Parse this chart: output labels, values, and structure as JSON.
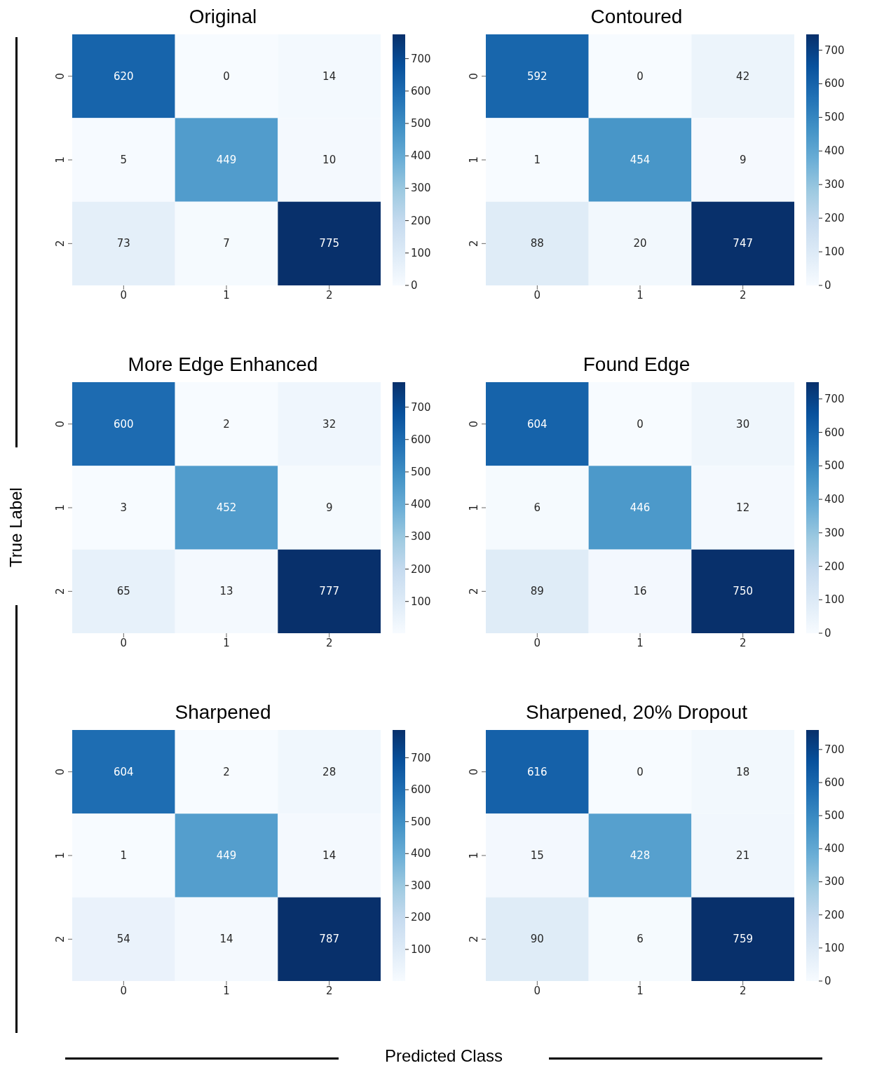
{
  "chart_data": [
    {
      "type": "heatmap",
      "title": "Original",
      "categories": [
        "0",
        "1",
        "2"
      ],
      "y_categories": [
        "0",
        "1",
        "2"
      ],
      "cells": [
        [
          620,
          0,
          14
        ],
        [
          5,
          449,
          10
        ],
        [
          73,
          7,
          775
        ]
      ],
      "clim": [
        0,
        775
      ],
      "cticks": [
        0,
        100,
        200,
        300,
        400,
        500,
        600,
        700
      ],
      "data_labels": true
    },
    {
      "type": "heatmap",
      "title": "Contoured",
      "categories": [
        "0",
        "1",
        "2"
      ],
      "y_categories": [
        "0",
        "1",
        "2"
      ],
      "cells": [
        [
          592,
          0,
          42
        ],
        [
          1,
          454,
          9
        ],
        [
          88,
          20,
          747
        ]
      ],
      "clim": [
        0,
        747
      ],
      "cticks": [
        0,
        100,
        200,
        300,
        400,
        500,
        600,
        700
      ],
      "data_labels": true
    },
    {
      "type": "heatmap",
      "title": "More Edge Enhanced",
      "ylabel": "True Label",
      "categories": [
        "0",
        "1",
        "2"
      ],
      "y_categories": [
        "0",
        "1",
        "2"
      ],
      "cells": [
        [
          600,
          2,
          32
        ],
        [
          3,
          452,
          9
        ],
        [
          65,
          13,
          777
        ]
      ],
      "clim": [
        2,
        777
      ],
      "cticks": [
        100,
        200,
        300,
        400,
        500,
        600,
        700
      ],
      "data_labels": true
    },
    {
      "type": "heatmap",
      "title": "Found Edge",
      "categories": [
        "0",
        "1",
        "2"
      ],
      "y_categories": [
        "0",
        "1",
        "2"
      ],
      "cells": [
        [
          604,
          0,
          30
        ],
        [
          6,
          446,
          12
        ],
        [
          89,
          16,
          750
        ]
      ],
      "clim": [
        0,
        750
      ],
      "cticks": [
        0,
        100,
        200,
        300,
        400,
        500,
        600,
        700
      ],
      "data_labels": true
    },
    {
      "type": "heatmap",
      "title": "Sharpened",
      "xlabel": "Predicted Class",
      "categories": [
        "0",
        "1",
        "2"
      ],
      "y_categories": [
        "0",
        "1",
        "2"
      ],
      "cells": [
        [
          604,
          2,
          28
        ],
        [
          1,
          449,
          14
        ],
        [
          54,
          14,
          787
        ]
      ],
      "clim": [
        1,
        787
      ],
      "cticks": [
        100,
        200,
        300,
        400,
        500,
        600,
        700
      ],
      "data_labels": true
    },
    {
      "type": "heatmap",
      "title": "Sharpened, 20% Dropout",
      "categories": [
        "0",
        "1",
        "2"
      ],
      "y_categories": [
        "0",
        "1",
        "2"
      ],
      "cells": [
        [
          616,
          0,
          18
        ],
        [
          15,
          428,
          21
        ],
        [
          90,
          6,
          759
        ]
      ],
      "clim": [
        0,
        759
      ],
      "cticks": [
        0,
        100,
        200,
        300,
        400,
        500,
        600,
        700
      ],
      "data_labels": true
    }
  ]
}
